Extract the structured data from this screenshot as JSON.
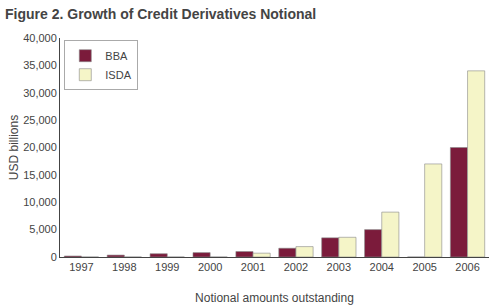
{
  "chart_data": {
    "type": "bar",
    "title": "Figure 2. Growth of Credit Derivatives Notional",
    "xlabel": "Notional amounts outstanding",
    "ylabel": "USD billions",
    "categories": [
      "1997",
      "1998",
      "1999",
      "2000",
      "2001",
      "2002",
      "2003",
      "2004",
      "2005",
      "2006"
    ],
    "series": [
      {
        "name": "BBA",
        "color": "#7B1B3B",
        "values": [
          180,
          350,
          600,
          800,
          1000,
          1600,
          3500,
          5000,
          0,
          20000
        ]
      },
      {
        "name": "ISDA",
        "color": "#F5F5C8",
        "values": [
          0,
          0,
          0,
          0,
          700,
          1900,
          3600,
          8200,
          17000,
          34000
        ]
      }
    ],
    "ylim": [
      0,
      40000
    ],
    "yticks": [
      0,
      {
        "value": 5000,
        "label": "5,000"
      },
      {
        "value": 10000,
        "label": "10,000"
      },
      {
        "value": 15000,
        "label": "15,000"
      },
      {
        "value": 20000,
        "label": "20,000"
      },
      {
        "value": 25000,
        "label": "25,000"
      },
      {
        "value": 30000,
        "label": "30,000"
      },
      {
        "value": 35000,
        "label": "35,000"
      },
      {
        "value": 40000,
        "label": "40,000"
      }
    ],
    "grid": false,
    "legend": "upper left"
  }
}
